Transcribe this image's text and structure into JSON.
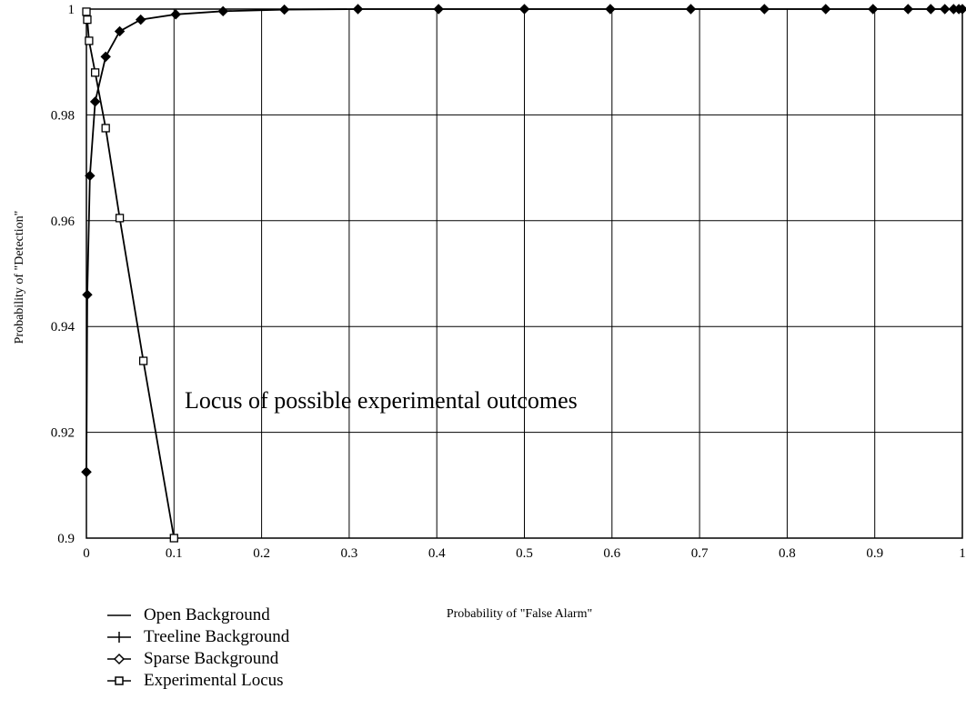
{
  "chart_data": {
    "type": "line",
    "title": "",
    "xlabel": "Probability of \"False Alarm\"",
    "ylabel": "Probability of \"Detection\"",
    "xlim": [
      0,
      1
    ],
    "ylim": [
      0.9,
      1
    ],
    "x_ticks": [
      "0",
      "0.1",
      "0.2",
      "0.3",
      "0.4",
      "0.5",
      "0.6",
      "0.7",
      "0.8",
      "0.9",
      "1"
    ],
    "y_ticks": [
      "0.9",
      "0.92",
      "0.94",
      "0.96",
      "0.98",
      "1"
    ],
    "grid": true,
    "annotation": "Locus of possible experimental outcomes",
    "series": [
      {
        "name": "Sparse Background",
        "marker": "diamond",
        "x": [
          0.0,
          0.0,
          0.001,
          0.004,
          0.01,
          0.022,
          0.038,
          0.062,
          0.102,
          0.156,
          0.226,
          0.31,
          0.402,
          0.5,
          0.598,
          0.69,
          0.774,
          0.844,
          0.898,
          0.938,
          0.964,
          0.98,
          0.99,
          0.996,
          1.0
        ],
        "y": [
          0.9125,
          0.9125,
          0.946,
          0.9685,
          0.9825,
          0.991,
          0.9958,
          0.998,
          0.999,
          0.9996,
          0.9999,
          1.0,
          1.0,
          1.0,
          1.0,
          1.0,
          1.0,
          1.0,
          1.0,
          1.0,
          1.0,
          1.0,
          1.0,
          1.0,
          1.0
        ]
      },
      {
        "name": "Experimental Locus",
        "marker": "square",
        "x": [
          0.0,
          0.001,
          0.003,
          0.01,
          0.022,
          0.038,
          0.065,
          0.1
        ],
        "y": [
          0.9995,
          0.998,
          0.994,
          0.988,
          0.9775,
          0.9605,
          0.9335,
          0.9
        ]
      }
    ],
    "legend": [
      {
        "label": "Open Background",
        "marker": "none"
      },
      {
        "label": "Treeline Background",
        "marker": "plus"
      },
      {
        "label": "Sparse Background",
        "marker": "diamond"
      },
      {
        "label": "Experimental Locus",
        "marker": "square"
      }
    ]
  }
}
